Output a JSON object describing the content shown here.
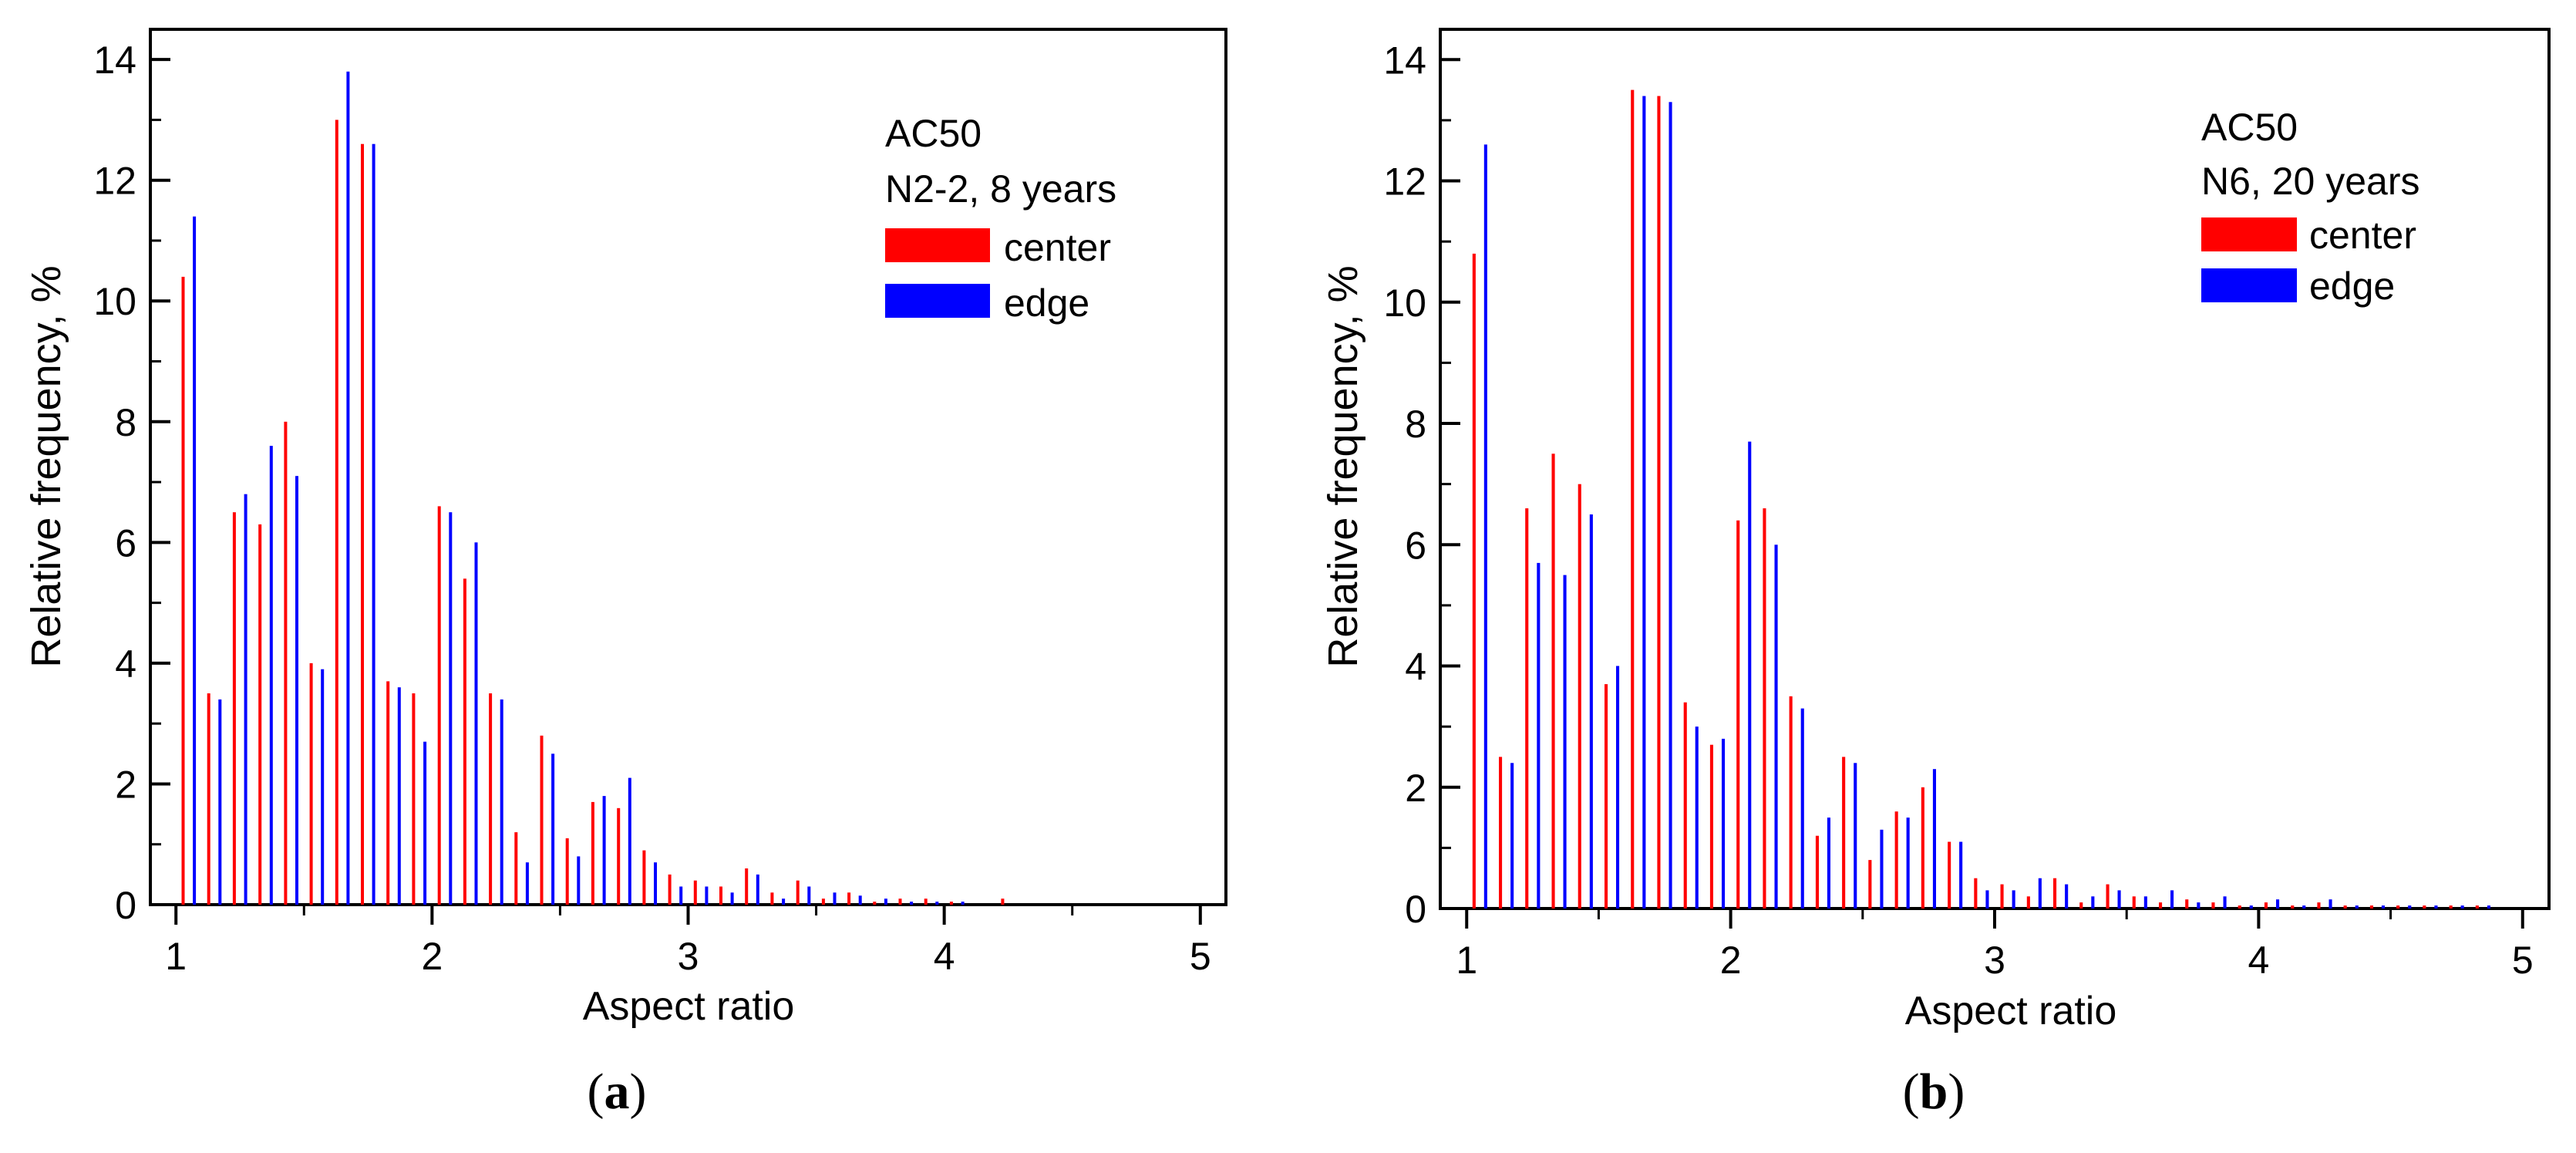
{
  "chart_data": [
    {
      "type": "bar",
      "panel_label": "a",
      "xlabel": "Aspect ratio",
      "ylabel": "Relative frequency, %",
      "xlim": [
        0.9,
        5.1
      ],
      "ylim": [
        0,
        14.5
      ],
      "xticks": [
        1,
        2,
        3,
        4,
        5
      ],
      "yticks": [
        0,
        2,
        4,
        6,
        8,
        10,
        12,
        14
      ],
      "legend": {
        "title_lines": [
          "AC50",
          "N2-2, 8 years"
        ],
        "placement": "top-right"
      },
      "colors": {
        "center": "#ff0000",
        "edge": "#0000ff"
      },
      "categories": [
        1.05,
        1.15,
        1.25,
        1.35,
        1.45,
        1.55,
        1.65,
        1.75,
        1.85,
        1.95,
        2.05,
        2.15,
        2.25,
        2.35,
        2.45,
        2.55,
        2.65,
        2.75,
        2.85,
        2.95,
        3.05,
        3.15,
        3.25,
        3.35,
        3.45,
        3.55,
        3.65,
        3.75,
        3.85,
        3.95,
        4.05,
        4.15,
        4.25,
        4.35,
        4.45,
        4.55,
        4.65,
        4.75,
        4.85,
        4.95
      ],
      "series": [
        {
          "name": "center",
          "values": [
            10.4,
            3.5,
            6.5,
            6.3,
            8.0,
            4.0,
            13.0,
            12.6,
            3.7,
            3.5,
            6.6,
            5.4,
            3.5,
            1.2,
            2.8,
            1.1,
            1.7,
            1.6,
            0.9,
            0.5,
            0.4,
            0.3,
            0.6,
            0.2,
            0.4,
            0.1,
            0.2,
            0.05,
            0.1,
            0.1,
            0.05,
            0.0,
            0.1,
            0.0,
            0.0,
            0.0,
            0.0,
            0.0,
            0.0,
            0.0
          ]
        },
        {
          "name": "edge",
          "values": [
            11.4,
            3.4,
            6.8,
            7.6,
            7.1,
            3.9,
            13.8,
            12.6,
            3.6,
            2.7,
            6.5,
            6.0,
            3.4,
            0.7,
            2.5,
            0.8,
            1.8,
            2.1,
            0.7,
            0.3,
            0.3,
            0.2,
            0.5,
            0.1,
            0.3,
            0.2,
            0.15,
            0.1,
            0.05,
            0.05,
            0.05,
            0.0,
            0.0,
            0.0,
            0.0,
            0.0,
            0.0,
            0.0,
            0.0,
            0.0
          ]
        }
      ]
    },
    {
      "type": "bar",
      "panel_label": "b",
      "xlabel": "Aspect ratio",
      "ylabel": "Relative frequency, %",
      "xlim": [
        0.9,
        5.1
      ],
      "ylim": [
        0,
        14.5
      ],
      "xticks": [
        1,
        2,
        3,
        4,
        5
      ],
      "yticks": [
        0,
        2,
        4,
        6,
        8,
        10,
        12,
        14
      ],
      "legend": {
        "title_lines": [
          "AC50",
          "N6, 20 years"
        ],
        "placement": "top-right"
      },
      "colors": {
        "center": "#ff0000",
        "edge": "#0000ff"
      },
      "categories": [
        1.05,
        1.15,
        1.25,
        1.35,
        1.45,
        1.55,
        1.65,
        1.75,
        1.85,
        1.95,
        2.05,
        2.15,
        2.25,
        2.35,
        2.45,
        2.55,
        2.65,
        2.75,
        2.85,
        2.95,
        3.05,
        3.15,
        3.25,
        3.35,
        3.45,
        3.55,
        3.65,
        3.75,
        3.85,
        3.95,
        4.05,
        4.15,
        4.25,
        4.35,
        4.45,
        4.55,
        4.65,
        4.75,
        4.85,
        4.95
      ],
      "series": [
        {
          "name": "center",
          "values": [
            10.8,
            2.5,
            6.6,
            7.5,
            7.0,
            3.7,
            13.5,
            13.4,
            3.4,
            2.7,
            6.4,
            6.6,
            3.5,
            1.2,
            2.5,
            0.8,
            1.6,
            2.0,
            1.1,
            0.5,
            0.4,
            0.2,
            0.5,
            0.1,
            0.4,
            0.2,
            0.1,
            0.15,
            0.1,
            0.05,
            0.1,
            0.05,
            0.1,
            0.05,
            0.05,
            0.05,
            0.05,
            0.05,
            0.05,
            0.0
          ]
        },
        {
          "name": "edge",
          "values": [
            12.6,
            2.4,
            5.7,
            5.5,
            6.5,
            4.0,
            13.4,
            13.3,
            3.0,
            2.8,
            7.7,
            6.0,
            3.3,
            1.5,
            2.4,
            1.3,
            1.5,
            2.3,
            1.1,
            0.3,
            0.3,
            0.5,
            0.4,
            0.2,
            0.3,
            0.2,
            0.3,
            0.1,
            0.2,
            0.05,
            0.15,
            0.05,
            0.15,
            0.05,
            0.05,
            0.05,
            0.05,
            0.05,
            0.05,
            0.0
          ]
        }
      ]
    }
  ]
}
